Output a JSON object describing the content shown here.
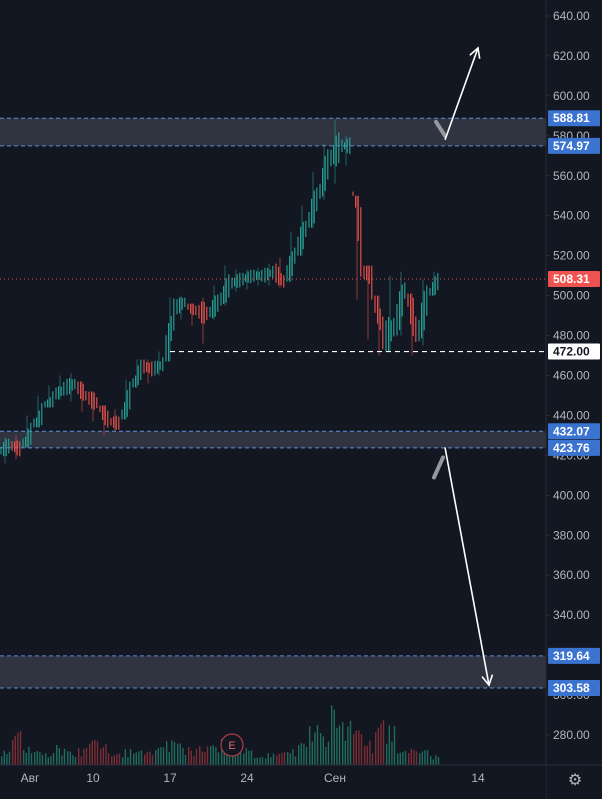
{
  "chart_data": {
    "type": "candlestick",
    "price_axis": {
      "ylim": [
        265,
        648
      ],
      "ticks": [
        280,
        300,
        320,
        340,
        360,
        380,
        400,
        420,
        440,
        460,
        480,
        500,
        520,
        540,
        560,
        580,
        600,
        620,
        640
      ],
      "tick_labels": [
        "280.00",
        "300.00",
        "320.00",
        "340.00",
        "360.00",
        "380.00",
        "400.00",
        "420.00",
        "440.00",
        "460.00",
        "480.00",
        "500.00",
        "520.00",
        "540.00",
        "560.00",
        "580.00",
        "600.00",
        "620.00",
        "640.00"
      ]
    },
    "time_axis": {
      "labels": [
        "Авг",
        "10",
        "17",
        "24",
        "Сен",
        "14"
      ],
      "label_day_index": [
        0,
        8,
        15,
        22,
        30,
        43
      ]
    },
    "last_price": {
      "value": 508.31,
      "label": "508.31"
    },
    "level_tags": [
      {
        "value": 588.81,
        "label": "588.81",
        "color": "#2962ff"
      },
      {
        "value": 574.97,
        "label": "574.97",
        "color": "#2962ff"
      },
      {
        "value": 472.0,
        "label": "472.00",
        "color": "#ffffff"
      },
      {
        "value": 432.07,
        "label": "432.07",
        "color": "#2962ff"
      },
      {
        "value": 423.76,
        "label": "423.76",
        "color": "#2962ff"
      },
      {
        "value": 319.64,
        "label": "319.64",
        "color": "#2962ff"
      },
      {
        "value": 303.58,
        "label": "303.58",
        "color": "#2962ff"
      }
    ],
    "zones": [
      {
        "from": 574.97,
        "to": 588.81
      },
      {
        "from": 423.76,
        "to": 432.07
      },
      {
        "from": 303.58,
        "to": 319.64
      }
    ],
    "support_line": {
      "value": 472.0,
      "from_day": 15,
      "style": "dashed"
    },
    "projections": [
      {
        "from_day": 40,
        "from_price": 578,
        "to_day": 43,
        "to_price": 624,
        "direction": "up"
      },
      {
        "from_day": 40,
        "from_price": 424,
        "to_day": 44,
        "to_price": 305,
        "direction": "down"
      }
    ],
    "earnings_marker": {
      "label": "E",
      "day_index": 20
    },
    "series": {
      "days": [
        0,
        1,
        2,
        3,
        4,
        5,
        6,
        7,
        8,
        9,
        10,
        11,
        12,
        13,
        14,
        15,
        16,
        17,
        18,
        19,
        20,
        21,
        22,
        23,
        24,
        25,
        26,
        27,
        28,
        29,
        30,
        31,
        32,
        33,
        34,
        35,
        36,
        37,
        38,
        39
      ],
      "closes": [
        425,
        423,
        432,
        442,
        449,
        454,
        456,
        449,
        446,
        437,
        436,
        452,
        465,
        463,
        466,
        494,
        497,
        492,
        491,
        497,
        506,
        508,
        510,
        510,
        512,
        506,
        522,
        535,
        550,
        568,
        575,
        575,
        520,
        505,
        478,
        485,
        505,
        480,
        500,
        508
      ],
      "highs": [
        429,
        430,
        440,
        450,
        455,
        460,
        461,
        457,
        452,
        445,
        443,
        458,
        468,
        468,
        472,
        499,
        500,
        496,
        499,
        505,
        515,
        513,
        513,
        514,
        516,
        519,
        532,
        545,
        562,
        576,
        588,
        580,
        550,
        515,
        500,
        510,
        512,
        501,
        508,
        512
      ],
      "lows": [
        416,
        418,
        424,
        434,
        444,
        448,
        447,
        442,
        437,
        430,
        432,
        438,
        454,
        456,
        460,
        467,
        488,
        485,
        476,
        488,
        495,
        502,
        503,
        505,
        505,
        504,
        507,
        520,
        534,
        548,
        556,
        565,
        498,
        478,
        470,
        472,
        480,
        470,
        475,
        500
      ],
      "volumes": [
        15,
        35,
        18,
        14,
        12,
        20,
        14,
        18,
        25,
        22,
        14,
        16,
        20,
        15,
        18,
        26,
        22,
        18,
        19,
        20,
        30,
        25,
        18,
        14,
        12,
        14,
        16,
        22,
        40,
        32,
        60,
        45,
        35,
        25,
        50,
        40,
        22,
        18,
        15,
        10
      ]
    }
  }
}
